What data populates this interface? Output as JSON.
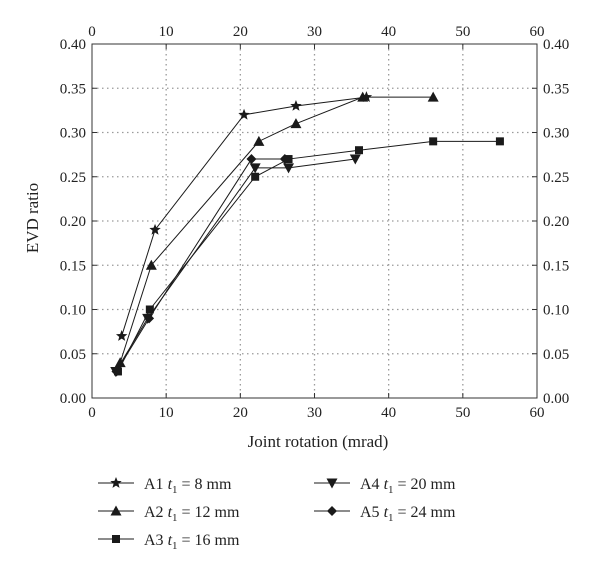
{
  "chart_data": {
    "type": "line",
    "xlabel": "Joint rotation (mrad)",
    "ylabel": "EVD ratio",
    "xlim": [
      0,
      60
    ],
    "ylim": [
      0,
      0.4
    ],
    "x_ticks": [
      "0",
      "10",
      "20",
      "30",
      "40",
      "50",
      "60"
    ],
    "y_ticks": [
      "0.00",
      "0.05",
      "0.10",
      "0.15",
      "0.20",
      "0.25",
      "0.30",
      "0.35",
      "0.40"
    ],
    "grid": true,
    "mirror_axes": true,
    "legend_position": "bottom",
    "series": [
      {
        "name": "A1",
        "label_prefix": "A1 ",
        "label_var": "t",
        "label_sub": "1",
        "label_suffix": " = 8 mm",
        "marker": "star",
        "x": [
          4,
          8.5,
          20.5,
          27.5,
          37
        ],
        "y": [
          0.07,
          0.19,
          0.32,
          0.33,
          0.34
        ]
      },
      {
        "name": "A2",
        "label_prefix": "A2 ",
        "label_var": "t",
        "label_sub": "1",
        "label_suffix": " = 12 mm",
        "marker": "triangle-up",
        "x": [
          3.8,
          8,
          22.5,
          27.5,
          36.5,
          46
        ],
        "y": [
          0.04,
          0.15,
          0.29,
          0.31,
          0.34,
          0.34
        ]
      },
      {
        "name": "A3",
        "label_prefix": "A3 ",
        "label_var": "t",
        "label_sub": "1",
        "label_suffix": " = 16 mm",
        "marker": "square",
        "x": [
          3.5,
          7.8,
          22,
          26.5,
          36,
          46,
          55
        ],
        "y": [
          0.03,
          0.1,
          0.25,
          0.27,
          0.28,
          0.29,
          0.29
        ]
      },
      {
        "name": "A4",
        "label_prefix": "A4 ",
        "label_var": "t",
        "label_sub": "1",
        "label_suffix": " = 20 mm",
        "marker": "triangle-down",
        "x": [
          3.2,
          7.5,
          22,
          26.5,
          35.5
        ],
        "y": [
          0.03,
          0.09,
          0.26,
          0.26,
          0.27
        ]
      },
      {
        "name": "A5",
        "label_prefix": "A5 ",
        "label_var": "t",
        "label_sub": "1",
        "label_suffix": " = 24 mm",
        "marker": "diamond",
        "x": [
          3.3,
          7.7,
          21.5,
          26
        ],
        "y": [
          0.03,
          0.09,
          0.27,
          0.27
        ]
      }
    ],
    "colors": {
      "line": "#1a1a1a",
      "grid": "#9a9a9a",
      "frame": "#333333"
    }
  }
}
